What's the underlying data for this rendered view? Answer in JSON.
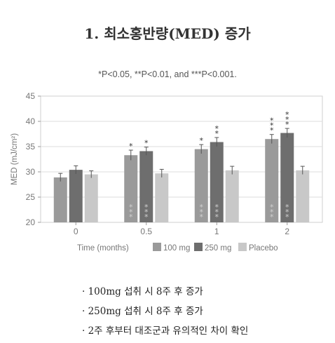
{
  "title": "1. 최소홍반량(MED) 증가",
  "significance_note": "*P<0.05, **P<0.01, and ***P<0.001.",
  "notes": [
    "· 100mg 섭취 시 8주 후 증가",
    "· 250mg 섭취 시 8주 후 증가",
    "· 2주 후부터 대조군과 유의적인 차이 확인"
  ],
  "chart_data": {
    "type": "bar",
    "ylabel": "MED (mJ/cm²)",
    "xlabel": "Time (months)",
    "ylim": [
      20,
      45
    ],
    "yticks": [
      20,
      25,
      30,
      35,
      40,
      45
    ],
    "categories": [
      "0",
      "0.5",
      "1",
      "2"
    ],
    "legend_title": "Time (months)",
    "legend_position": "bottom",
    "series": [
      {
        "name": "100 mg",
        "color": "#9a9a9a",
        "values": [
          28.9,
          33.3,
          34.5,
          36.5
        ],
        "errors": [
          0.8,
          1.0,
          0.9,
          0.9
        ],
        "stars_top": [
          "",
          "*",
          "*",
          "***"
        ],
        "stars_inside": [
          "",
          "***",
          "***",
          "***"
        ]
      },
      {
        "name": "250 mg",
        "color": "#6e6e6e",
        "values": [
          30.4,
          34.1,
          35.9,
          37.7
        ],
        "errors": [
          0.8,
          0.8,
          0.9,
          0.9
        ],
        "stars_top": [
          "",
          "*",
          "**",
          "***"
        ],
        "stars_inside": [
          "",
          "***",
          "***",
          "***"
        ]
      },
      {
        "name": "Placebo",
        "color": "#c8c8c8",
        "values": [
          29.5,
          29.7,
          30.3,
          30.3
        ],
        "errors": [
          0.7,
          0.8,
          0.8,
          0.8
        ],
        "stars_top": [
          "",
          "",
          "",
          ""
        ],
        "stars_inside": [
          "",
          "",
          "",
          ""
        ]
      }
    ]
  }
}
